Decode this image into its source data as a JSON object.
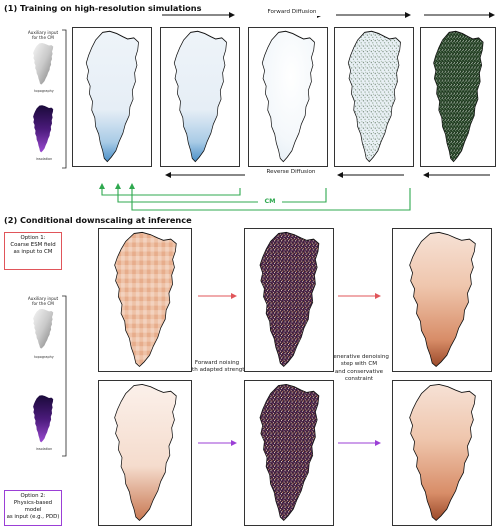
{
  "section1": {
    "title": "(1) Training on high-resolution simulations",
    "forward_label": "Forward Diffusion",
    "reverse_label": "Reverse Diffusion",
    "cm_label": "CM",
    "aux_label": "Auxiliary input\nfor the CM",
    "topo_label": "topography",
    "insol_label": "insolation"
  },
  "section2": {
    "title": "(2) Conditional downscaling at inference",
    "option1": "Option 1:\nCoarse ESM field\nas input to CM",
    "option2": "Option 2:\nPhysics-based model\nas input (e.g., PDD)",
    "aux_label": "Auxiliary input\nfor the CM",
    "topo_label": "topography",
    "insol_label": "insolation",
    "noising_label": "Forward noising\nwith adapted strength",
    "denoising_label": "Generative denoising\nstep with CM\nand conservative\nconstraint"
  },
  "colors": {
    "cm_green": "#2fa84f",
    "option1_red": "#e0555a",
    "option2_purple": "#9b3fd6",
    "arrow_black": "#111111"
  }
}
